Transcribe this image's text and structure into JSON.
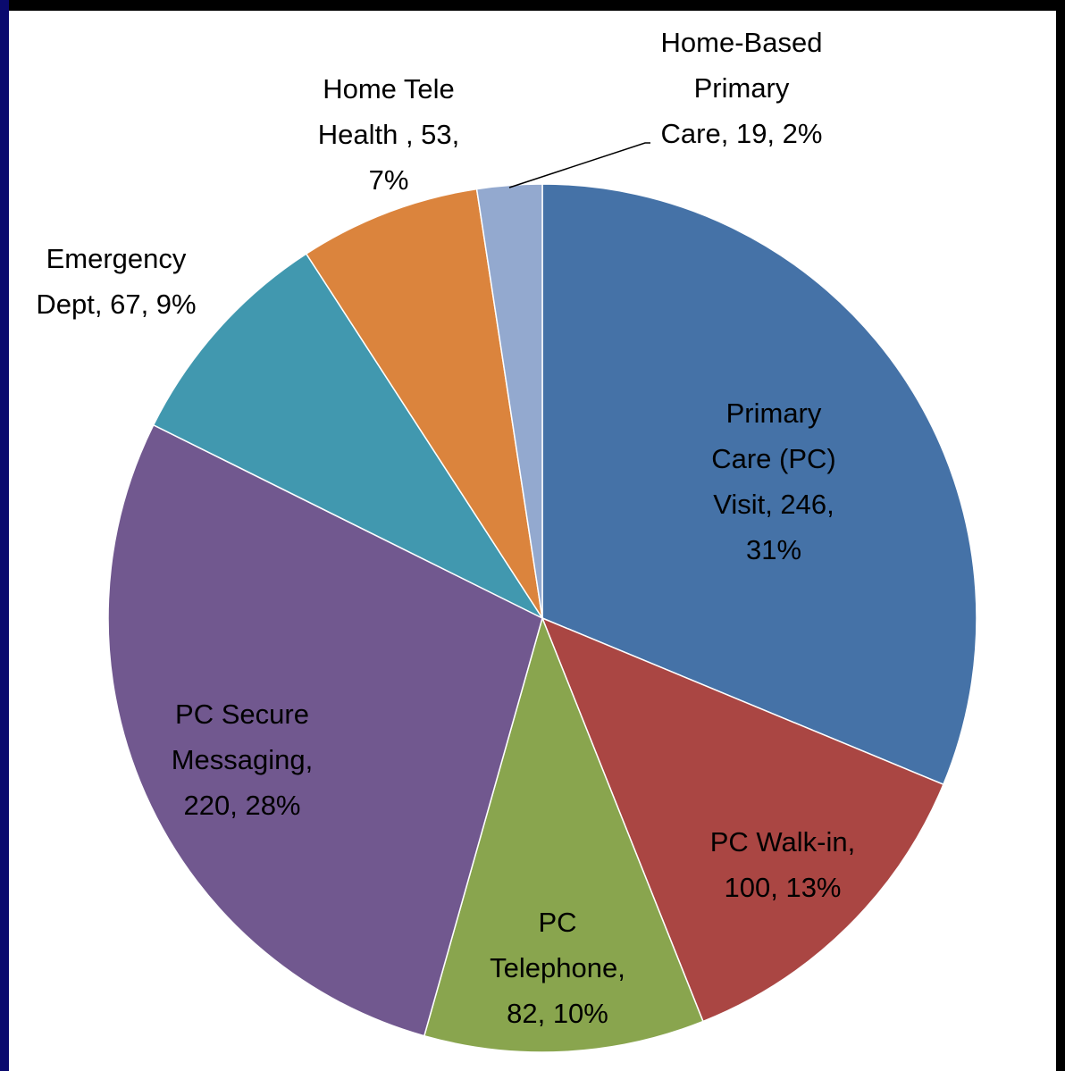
{
  "chart_data": {
    "type": "pie",
    "categories": [
      "Primary Care (PC) Visit",
      "PC Walk-in",
      "PC Telephone",
      "PC Secure Messaging",
      "Emergency Dept",
      "Home Tele Health",
      "Home-Based Primary Care"
    ],
    "values": [
      246,
      100,
      82,
      220,
      67,
      53,
      19
    ],
    "value_labels": [
      [
        "Primary",
        "Care (PC)",
        "Visit, 246,",
        "31%"
      ],
      [
        "PC Walk-in,",
        "100, 13%"
      ],
      [
        "PC",
        "Telephone,",
        "82, 10%"
      ],
      [
        "PC Secure",
        "Messaging,",
        "220, 28%"
      ],
      [
        "Emergency",
        "Dept, 67, 9%"
      ],
      [
        "Home Tele",
        "Health , 53,",
        "7%"
      ],
      [
        "Home-Based",
        "Primary",
        "Care, 19, 2%"
      ]
    ],
    "colors": [
      "#4572a7",
      "#aa4643",
      "#89a54e",
      "#71588f",
      "#4198af",
      "#db843d",
      "#93a9cf"
    ]
  }
}
